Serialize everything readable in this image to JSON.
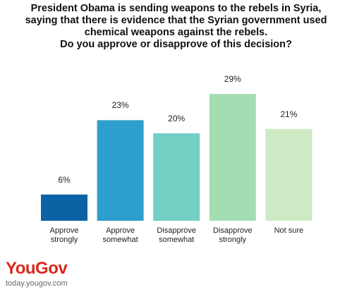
{
  "chart_data": {
    "type": "bar",
    "title": "President Obama is sending weapons to the rebels in Syria, saying that there is evidence that the Syrian government used chemical weapons against the rebels.",
    "subtitle": "Do you approve or disapprove of this decision?",
    "categories": [
      "Approve strongly",
      "Approve somewhat",
      "Disapprove somewhat",
      "Disapprove strongly",
      "Not sure"
    ],
    "values": [
      6,
      23,
      20,
      29,
      21
    ],
    "value_labels": [
      "6%",
      "23%",
      "20%",
      "29%",
      "21%"
    ],
    "colors": [
      "#0b63a5",
      "#2e9fcc",
      "#74cfc4",
      "#a5ddb2",
      "#cdeac4"
    ]
  },
  "logo": {
    "brand": "YouGov",
    "url": "today.yougov.com"
  }
}
